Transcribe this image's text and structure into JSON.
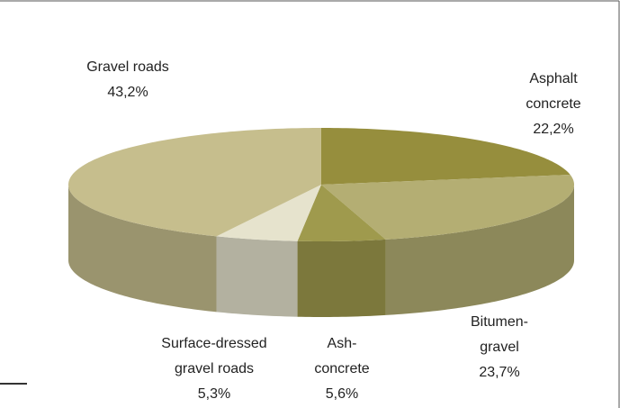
{
  "chart_data": {
    "type": "pie3d",
    "categories": [
      "Asphalt concrete",
      "Bitumen-gravel",
      "Ash-concrete",
      "Surface-dressed gravel roads",
      "Gravel roads"
    ],
    "values": [
      22.2,
      23.7,
      5.6,
      5.3,
      43.2
    ],
    "value_labels": [
      "22,2%",
      "23,7%",
      "5,6%",
      "5,3%",
      "43,2%"
    ],
    "colors": [
      "#968e3d",
      "#b4ae73",
      "#9f9a4d",
      "#e6e3cd",
      "#c6be8d"
    ]
  }
}
